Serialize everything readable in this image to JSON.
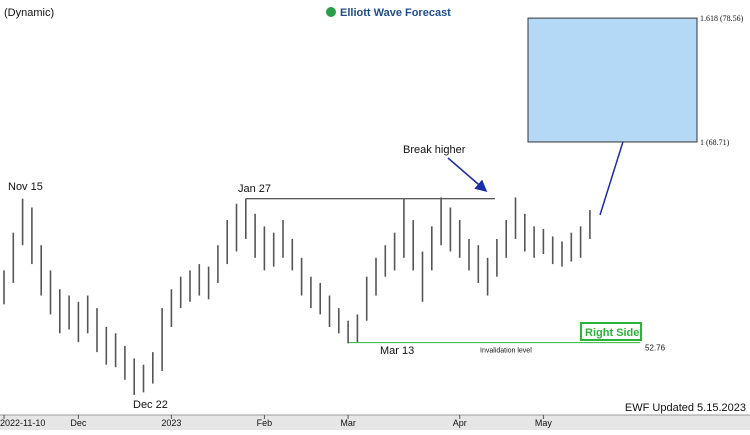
{
  "chart_data": {
    "type": "range-bar",
    "header": "(Dynamic)",
    "logo": "Elliott Wave Forecast",
    "footer": "EWF Updated 5.15.2023",
    "categories": [
      "2022-11-10",
      null,
      null,
      null,
      null,
      null,
      null,
      null,
      "Dec",
      null,
      null,
      null,
      null,
      null,
      null,
      null,
      null,
      null,
      "2023",
      null,
      null,
      null,
      null,
      null,
      null,
      null,
      null,
      null,
      "Feb",
      null,
      null,
      null,
      null,
      null,
      null,
      null,
      null,
      "Mar",
      null,
      null,
      null,
      null,
      null,
      null,
      null,
      null,
      null,
      null,
      null,
      "Apr",
      null,
      null,
      null,
      null,
      null,
      null,
      null,
      null,
      "May",
      null,
      null,
      null,
      null,
      null
    ],
    "series": [
      {
        "name": "High",
        "color": "#555555",
        "values": [
          58.5,
          61.5,
          64.2,
          63.5,
          60.5,
          58.5,
          57.0,
          56.5,
          56.0,
          56.5,
          55.5,
          54.0,
          53.5,
          52.5,
          51.5,
          51.0,
          52.0,
          55.5,
          57.0,
          58.0,
          58.5,
          59.0,
          58.8,
          60.5,
          62.5,
          63.8,
          64.2,
          63.0,
          62.0,
          61.5,
          62.5,
          61.0,
          59.5,
          58.0,
          57.5,
          56.5,
          55.5,
          54.5,
          55.0,
          58.0,
          59.5,
          60.5,
          61.5,
          64.2,
          62.5,
          60.0,
          62.0,
          64.3,
          63.5,
          62.5,
          61.0,
          60.5,
          59.5,
          61.0,
          62.5,
          64.3,
          63.0,
          62.0,
          61.8,
          61.2,
          60.8,
          61.5,
          62.0,
          63.3
        ]
      },
      {
        "name": "Low",
        "color": "#555555",
        "values": [
          55.8,
          57.5,
          60.5,
          59.0,
          56.5,
          55.0,
          53.5,
          53.8,
          52.8,
          53.5,
          52.0,
          51.0,
          50.8,
          49.8,
          48.6,
          48.8,
          49.5,
          50.5,
          54.0,
          55.5,
          56.0,
          56.5,
          56.2,
          57.5,
          59.0,
          60.0,
          61.0,
          59.5,
          58.5,
          58.8,
          59.5,
          58.5,
          56.5,
          55.5,
          55.0,
          54.0,
          53.5,
          52.7,
          52.8,
          54.5,
          56.5,
          58.0,
          58.5,
          59.5,
          58.5,
          56.0,
          58.5,
          60.5,
          60.0,
          59.5,
          58.5,
          57.5,
          56.5,
          58.0,
          59.5,
          61.0,
          60.0,
          59.5,
          59.8,
          59.0,
          58.8,
          59.2,
          59.5,
          61.0
        ]
      }
    ],
    "ylim": [
      47,
      80
    ],
    "target_levels": [
      {
        "value": 78.56,
        "label": "1.618 (78.56)"
      },
      {
        "value": 68.71,
        "label": "1 (68.71)"
      }
    ],
    "target_color": "#b3d9f7",
    "invalidation": {
      "value": 52.76,
      "name": "Invalidation level"
    },
    "annotations": [
      "Nov 15",
      "Dec 22",
      "Jan 27",
      "Mar 13",
      "Break higher"
    ],
    "badge": "Right Side"
  }
}
